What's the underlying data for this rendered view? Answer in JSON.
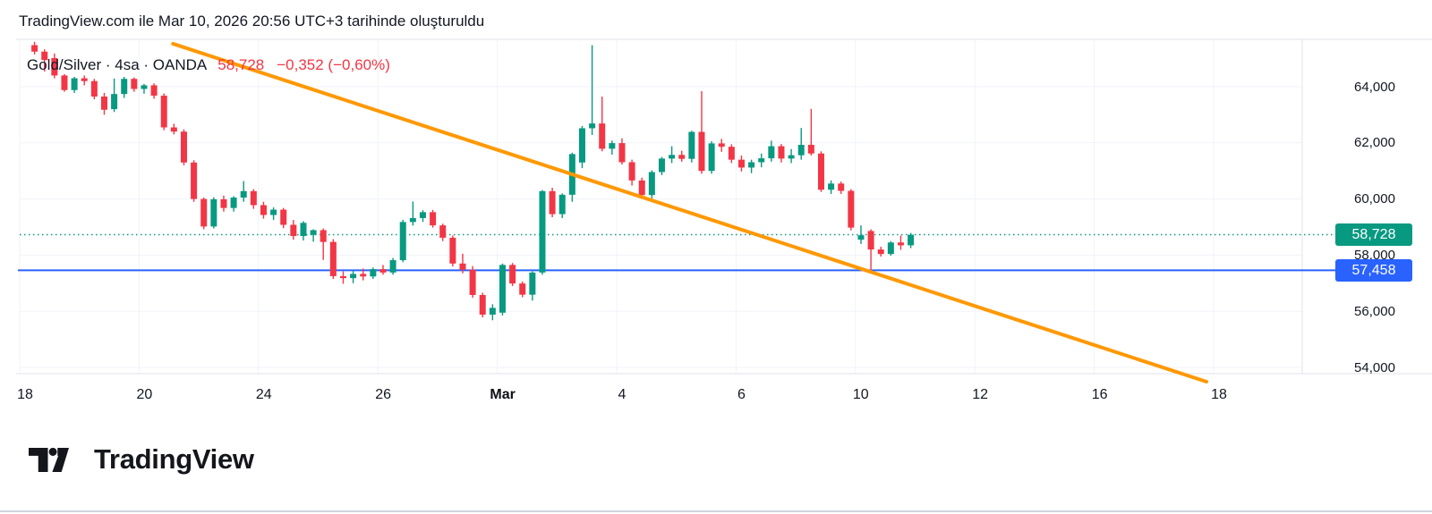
{
  "attribution": "TradingView.com ile Mar 10, 2026 20:56 UTC+3 tarihinde oluşturuldu",
  "legend": {
    "title": "Gold/Silver · 4sa · OANDA",
    "price": "58,728",
    "change": "−0,352 (−0,60%)"
  },
  "colors": {
    "up": "#089981",
    "down": "#f23645",
    "trendline": "#ff9800",
    "level_line": "#2962ff",
    "current_price_line": "#089981",
    "grid": "#f0f3fa",
    "border": "#e0e3eb",
    "axis_text": "#131722",
    "change_text": "#f23645",
    "badge_current_bg": "#089981",
    "badge_level_bg": "#2962ff"
  },
  "y_axis": {
    "ticks": [
      {
        "label": "64,000",
        "value": 64000
      },
      {
        "label": "62,000",
        "value": 62000
      },
      {
        "label": "60,000",
        "value": 60000
      },
      {
        "label": "58,000",
        "value": 58000
      },
      {
        "label": "56,000",
        "value": 56000
      },
      {
        "label": "54,000",
        "value": 54000
      }
    ],
    "badges": [
      {
        "label": "58,728",
        "value": 58728,
        "bg": "#089981",
        "type": "current-price"
      },
      {
        "label": "57,458",
        "value": 57458,
        "bg": "#2962ff",
        "type": "horizontal-line-level"
      }
    ]
  },
  "x_axis": {
    "ticks": [
      {
        "label": "18",
        "bold": false
      },
      {
        "label": "20",
        "bold": false
      },
      {
        "label": "24",
        "bold": false
      },
      {
        "label": "26",
        "bold": false
      },
      {
        "label": "Mar",
        "bold": true
      },
      {
        "label": "4",
        "bold": false
      },
      {
        "label": "6",
        "bold": false
      },
      {
        "label": "10",
        "bold": false
      },
      {
        "label": "12",
        "bold": false
      },
      {
        "label": "16",
        "bold": false
      },
      {
        "label": "18",
        "bold": false
      }
    ]
  },
  "footer_logo": {
    "text": "TradingView"
  },
  "chart_data": {
    "type": "candlestick",
    "title": "Gold/Silver",
    "interval": "4sa",
    "exchange": "OANDA",
    "last_price": "58,728",
    "change": "−0,352 (−0,60%)",
    "note": "Turkish decimal-comma format: displayed 58,728 = 58.728 ratio; numbers below are scaled ×1000. OHLC estimated from pixels.",
    "x_tick_labels": [
      "18",
      "20",
      "24",
      "26",
      "Mar",
      "4",
      "6",
      "10",
      "12",
      "16",
      "18"
    ],
    "y_tick_values": [
      64000,
      62000,
      60000,
      58000,
      56000,
      54000
    ],
    "visible_price_range": [
      53300,
      65800
    ],
    "candles": [
      [
        65480,
        65600,
        65150,
        65250
      ],
      [
        65250,
        65330,
        64540,
        64950
      ],
      [
        65020,
        65180,
        64300,
        64400
      ],
      [
        64400,
        64450,
        63820,
        63880
      ],
      [
        63880,
        64350,
        63780,
        64300
      ],
      [
        64300,
        64400,
        64050,
        64200
      ],
      [
        64200,
        64280,
        63550,
        63650
      ],
      [
        63650,
        63780,
        63000,
        63180
      ],
      [
        63200,
        64290,
        63100,
        63740
      ],
      [
        63740,
        64350,
        63600,
        64280
      ],
      [
        64280,
        64330,
        63820,
        63920
      ],
      [
        63920,
        64100,
        63750,
        64050
      ],
      [
        64050,
        64120,
        63570,
        63680
      ],
      [
        63680,
        63760,
        62450,
        62550
      ],
      [
        62550,
        62680,
        62300,
        62400
      ],
      [
        62400,
        62480,
        61200,
        61300
      ],
      [
        61300,
        61380,
        59900,
        60000
      ],
      [
        60000,
        60050,
        58920,
        59020
      ],
      [
        59020,
        60060,
        58950,
        59990
      ],
      [
        59990,
        60120,
        59550,
        59680
      ],
      [
        59680,
        60100,
        59550,
        60050
      ],
      [
        60050,
        60640,
        59900,
        60280
      ],
      [
        60280,
        60350,
        59650,
        59780
      ],
      [
        59780,
        59900,
        59300,
        59430
      ],
      [
        59430,
        59700,
        59250,
        59620
      ],
      [
        59620,
        59680,
        58960,
        59080
      ],
      [
        59080,
        59250,
        58550,
        58680
      ],
      [
        58680,
        59210,
        58520,
        59150
      ],
      [
        58720,
        58920,
        58480,
        58890
      ],
      [
        58890,
        58950,
        57830,
        58470
      ],
      [
        58470,
        58570,
        57150,
        57250
      ],
      [
        57250,
        57420,
        56980,
        57180
      ],
      [
        57180,
        57450,
        57000,
        57330
      ],
      [
        57330,
        57520,
        57100,
        57240
      ],
      [
        57240,
        57560,
        57150,
        57500
      ],
      [
        57500,
        57650,
        57300,
        57380
      ],
      [
        57380,
        57900,
        57300,
        57820
      ],
      [
        57820,
        59260,
        57750,
        59180
      ],
      [
        59180,
        59910,
        59050,
        59320
      ],
      [
        59320,
        59600,
        59180,
        59530
      ],
      [
        59530,
        59610,
        58980,
        59060
      ],
      [
        59060,
        59120,
        58500,
        58620
      ],
      [
        58620,
        58700,
        57600,
        57700
      ],
      [
        57700,
        58050,
        57350,
        57480
      ],
      [
        57480,
        57610,
        56480,
        56580
      ],
      [
        56580,
        56660,
        55780,
        55880
      ],
      [
        55880,
        56250,
        55680,
        56120
      ],
      [
        55950,
        57700,
        55850,
        57650
      ],
      [
        57650,
        57720,
        56900,
        56990
      ],
      [
        56990,
        57060,
        56500,
        56590
      ],
      [
        56590,
        57420,
        56380,
        57380
      ],
      [
        57380,
        60320,
        57300,
        60280
      ],
      [
        60280,
        60400,
        59350,
        59460
      ],
      [
        59460,
        60200,
        59320,
        60150
      ],
      [
        60150,
        61650,
        59900,
        61600
      ],
      [
        61300,
        62600,
        61100,
        62520
      ],
      [
        62520,
        65480,
        62280,
        62690
      ],
      [
        62690,
        63650,
        61700,
        61790
      ],
      [
        61790,
        62080,
        61580,
        61990
      ],
      [
        61990,
        62160,
        61230,
        61310
      ],
      [
        61310,
        61400,
        60480,
        60660
      ],
      [
        60660,
        60760,
        60050,
        60140
      ],
      [
        60140,
        61020,
        60020,
        60960
      ],
      [
        60960,
        61500,
        60850,
        61440
      ],
      [
        61440,
        61880,
        61280,
        61570
      ],
      [
        61570,
        61720,
        61330,
        61430
      ],
      [
        61430,
        62430,
        61300,
        62390
      ],
      [
        62390,
        63840,
        60900,
        61000
      ],
      [
        61000,
        62060,
        60900,
        61980
      ],
      [
        61980,
        62140,
        61680,
        61860
      ],
      [
        61860,
        61950,
        61280,
        61400
      ],
      [
        61400,
        61550,
        60980,
        61120
      ],
      [
        61120,
        61400,
        60920,
        61310
      ],
      [
        61310,
        61620,
        61130,
        61450
      ],
      [
        61450,
        62080,
        61330,
        61880
      ],
      [
        61880,
        61960,
        61300,
        61440
      ],
      [
        61440,
        61780,
        61280,
        61560
      ],
      [
        61560,
        62530,
        61400,
        61930
      ],
      [
        61930,
        63210,
        61550,
        61620
      ],
      [
        61620,
        61700,
        60250,
        60330
      ],
      [
        60330,
        60660,
        60180,
        60550
      ],
      [
        60550,
        60620,
        60180,
        60290
      ],
      [
        60290,
        60350,
        58880,
        58980
      ],
      [
        58550,
        59060,
        58400,
        58710
      ],
      [
        58860,
        58920,
        57440,
        58200
      ],
      [
        58200,
        58300,
        57950,
        58040
      ],
      [
        58040,
        58500,
        57980,
        58450
      ],
      [
        58450,
        58700,
        58190,
        58350
      ],
      [
        58350,
        58790,
        58250,
        58728
      ]
    ],
    "annotations": {
      "trendline": {
        "type": "trend-line",
        "color": "#ff9800",
        "from": {
          "candle_index": 13.9,
          "price": 65530
        },
        "to": {
          "candle_index": 117.7,
          "price": 53490
        }
      },
      "horizontal_line": {
        "type": "horizontal-line",
        "color": "#2962ff",
        "price": 57458,
        "label": "57,458"
      },
      "current_price_line": {
        "type": "price-line",
        "style": "dotted",
        "color": "#089981",
        "price": 58728,
        "label": "58,728"
      }
    }
  }
}
